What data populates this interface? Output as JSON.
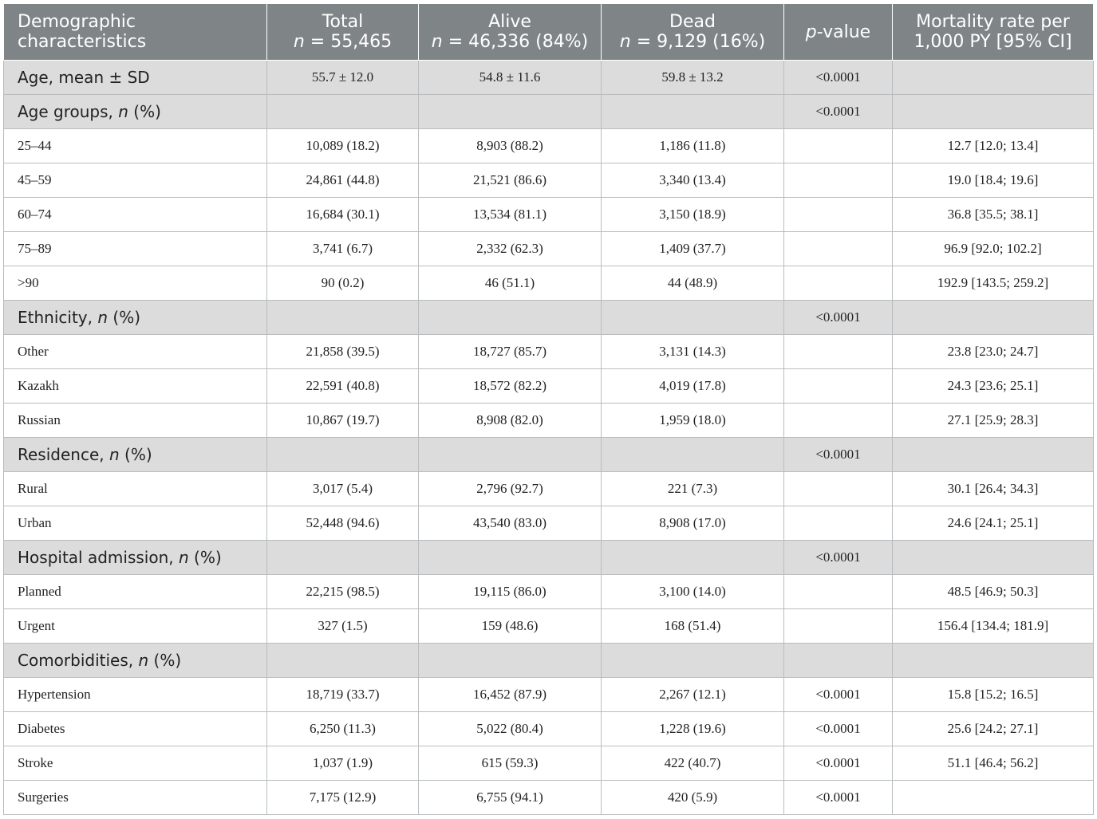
{
  "header": {
    "col1": "Demographic characteristics",
    "col1_line1": "Demographic",
    "col1_line2": "characteristics",
    "total_title": "Total",
    "total_sub": "= 55,465",
    "alive_title": "Alive",
    "alive_sub": "= 46,336 (84%)",
    "dead_title": "Dead",
    "dead_sub": "= 9,129 (16%)",
    "n_symbol": "n",
    "p_italic": "p",
    "p_rest": "-value",
    "rate_line1": "Mortality rate per",
    "rate_line2": "1,000 PY [95% CI]"
  },
  "rows": [
    {
      "type": "section",
      "label": "Age, mean ± SD",
      "total": "55.7 ± 12.0",
      "alive": "54.8 ± 11.6",
      "dead": "59.8 ± 13.2",
      "p": "<0.0001",
      "rate": ""
    },
    {
      "type": "section",
      "label": "Age groups, ",
      "label_italic": "n",
      "label_suffix": " (%)",
      "total": "",
      "alive": "",
      "dead": "",
      "p": "<0.0001",
      "rate": ""
    },
    {
      "type": "data",
      "label": "25–44",
      "total": "10,089 (18.2)",
      "alive": "8,903 (88.2)",
      "dead": "1,186 (11.8)",
      "p": "",
      "rate": "12.7 [12.0; 13.4]"
    },
    {
      "type": "data",
      "label": "45–59",
      "total": "24,861 (44.8)",
      "alive": "21,521 (86.6)",
      "dead": "3,340 (13.4)",
      "p": "",
      "rate": "19.0 [18.4; 19.6]"
    },
    {
      "type": "data",
      "label": "60–74",
      "total": "16,684 (30.1)",
      "alive": "13,534 (81.1)",
      "dead": "3,150 (18.9)",
      "p": "",
      "rate": "36.8 [35.5; 38.1]"
    },
    {
      "type": "data",
      "label": "75–89",
      "total": "3,741 (6.7)",
      "alive": "2,332 (62.3)",
      "dead": "1,409 (37.7)",
      "p": "",
      "rate": "96.9 [92.0; 102.2]"
    },
    {
      "type": "data",
      "label": ">90",
      "total": "90 (0.2)",
      "alive": "46 (51.1)",
      "dead": "44 (48.9)",
      "p": "",
      "rate": "192.9 [143.5; 259.2]"
    },
    {
      "type": "section",
      "label": "Ethnicity, ",
      "label_italic": "n",
      "label_suffix": " (%)",
      "total": "",
      "alive": "",
      "dead": "",
      "p": "<0.0001",
      "rate": ""
    },
    {
      "type": "data",
      "label": "Other",
      "total": "21,858 (39.5)",
      "alive": "18,727 (85.7)",
      "dead": "3,131 (14.3)",
      "p": "",
      "rate": "23.8 [23.0; 24.7]"
    },
    {
      "type": "data",
      "label": "Kazakh",
      "total": "22,591 (40.8)",
      "alive": "18,572 (82.2)",
      "dead": "4,019 (17.8)",
      "p": "",
      "rate": "24.3 [23.6; 25.1]"
    },
    {
      "type": "data",
      "label": "Russian",
      "total": "10,867 (19.7)",
      "alive": "8,908 (82.0)",
      "dead": "1,959 (18.0)",
      "p": "",
      "rate": "27.1 [25.9; 28.3]"
    },
    {
      "type": "section",
      "label": "Residence, ",
      "label_italic": "n",
      "label_suffix": " (%)",
      "total": "",
      "alive": "",
      "dead": "",
      "p": "<0.0001",
      "rate": ""
    },
    {
      "type": "data",
      "label": "Rural",
      "total": "3,017 (5.4)",
      "alive": "2,796 (92.7)",
      "dead": "221 (7.3)",
      "p": "",
      "rate": "30.1 [26.4; 34.3]"
    },
    {
      "type": "data",
      "label": "Urban",
      "total": "52,448 (94.6)",
      "alive": "43,540 (83.0)",
      "dead": "8,908 (17.0)",
      "p": "",
      "rate": "24.6 [24.1; 25.1]"
    },
    {
      "type": "section",
      "label": "Hospital admission, ",
      "label_italic": "n",
      "label_suffix": " (%)",
      "total": "",
      "alive": "",
      "dead": "",
      "p": "<0.0001",
      "rate": ""
    },
    {
      "type": "data",
      "label": "Planned",
      "total": "22,215 (98.5)",
      "alive": "19,115 (86.0)",
      "dead": "3,100 (14.0)",
      "p": "",
      "rate": "48.5 [46.9; 50.3]"
    },
    {
      "type": "data",
      "label": "Urgent",
      "total": "327 (1.5)",
      "alive": "159 (48.6)",
      "dead": "168 (51.4)",
      "p": "",
      "rate": "156.4 [134.4; 181.9]"
    },
    {
      "type": "section",
      "label": "Comorbidities, ",
      "label_italic": "n",
      "label_suffix": " (%)",
      "total": "",
      "alive": "",
      "dead": "",
      "p": "",
      "rate": ""
    },
    {
      "type": "data",
      "label": "Hypertension",
      "total": "18,719 (33.7)",
      "alive": "16,452 (87.9)",
      "dead": "2,267 (12.1)",
      "p": "<0.0001",
      "rate": "15.8 [15.2; 16.5]"
    },
    {
      "type": "data",
      "label": "Diabetes",
      "total": "6,250 (11.3)",
      "alive": "5,022 (80.4)",
      "dead": "1,228 (19.6)",
      "p": "<0.0001",
      "rate": "25.6 [24.2; 27.1]"
    },
    {
      "type": "data",
      "label": "Stroke",
      "total": "1,037 (1.9)",
      "alive": "615 (59.3)",
      "dead": "422 (40.7)",
      "p": "<0.0001",
      "rate": "51.1 [46.4; 56.2]"
    },
    {
      "type": "data",
      "label": "Surgeries",
      "total": "7,175 (12.9)",
      "alive": "6,755 (94.1)",
      "dead": "420 (5.9)",
      "p": "<0.0001",
      "rate": ""
    }
  ]
}
